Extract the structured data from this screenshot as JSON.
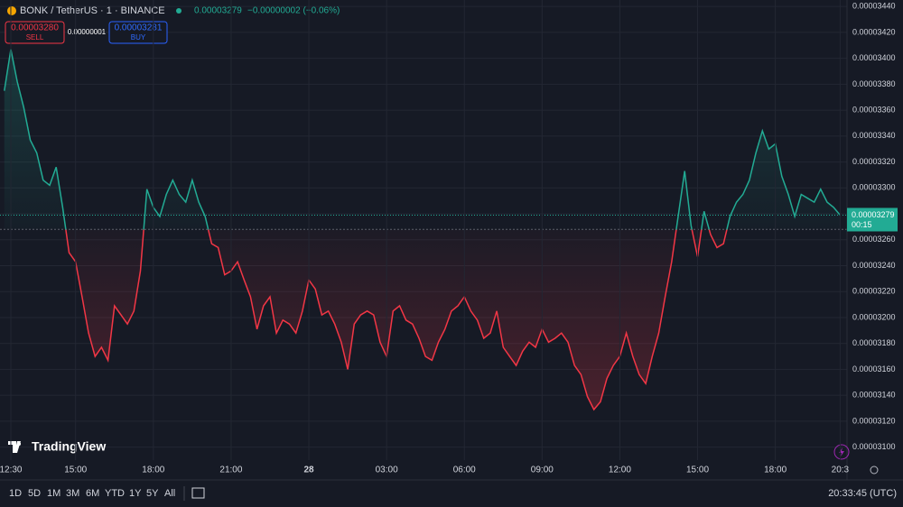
{
  "chart_data": {
    "type": "baseline",
    "categories": [
      null,
      "12:30",
      null,
      null,
      null,
      null,
      null,
      null,
      null,
      null,
      null,
      "15:00",
      null,
      null,
      null,
      null,
      null,
      null,
      null,
      null,
      null,
      null,
      null,
      "18:00",
      null,
      null,
      null,
      null,
      null,
      null,
      null,
      null,
      null,
      null,
      null,
      "21:00",
      null,
      null,
      null,
      null,
      null,
      null,
      null,
      null,
      null,
      null,
      null,
      "28",
      null,
      null,
      null,
      null,
      null,
      null,
      null,
      null,
      null,
      null,
      null,
      "03:00",
      null,
      null,
      null,
      null,
      null,
      null,
      null,
      null,
      null,
      null,
      null,
      "06:00",
      null,
      null,
      null,
      null,
      null,
      null,
      null,
      null,
      null,
      null,
      null,
      "09:00",
      null,
      null,
      null,
      null,
      null,
      null,
      null,
      null,
      null,
      null,
      null,
      "12:00",
      null,
      null,
      null,
      null,
      null,
      null,
      null,
      null,
      null,
      null,
      null,
      "15:00",
      null,
      null,
      null,
      null,
      null,
      null,
      null,
      null,
      null,
      null,
      null,
      "18:00",
      null,
      null,
      null,
      null,
      null,
      null,
      null,
      null,
      null,
      "20:3"
    ],
    "values": [
      3.375e-05,
      3.407e-05,
      3.382e-05,
      3.362e-05,
      3.337e-05,
      3.327e-05,
      3.306e-05,
      3.302e-05,
      3.316e-05,
      3.285e-05,
      3.25e-05,
      3.243e-05,
      3.216e-05,
      3.188e-05,
      3.17e-05,
      3.177e-05,
      3.167e-05,
      3.209e-05,
      3.202e-05,
      3.195e-05,
      3.205e-05,
      3.236e-05,
      3.299e-05,
      3.285e-05,
      3.278e-05,
      3.295e-05,
      3.306e-05,
      3.295e-05,
      3.289e-05,
      3.306e-05,
      3.289e-05,
      3.278e-05,
      3.257e-05,
      3.254e-05,
      3.233e-05,
      3.236e-05,
      3.243e-05,
      3.229e-05,
      3.216e-05,
      3.191e-05,
      3.209e-05,
      3.216e-05,
      3.188e-05,
      3.198e-05,
      3.195e-05,
      3.188e-05,
      3.205e-05,
      3.229e-05,
      3.222e-05,
      3.202e-05,
      3.205e-05,
      3.195e-05,
      3.181e-05,
      3.16e-05,
      3.195e-05,
      3.202e-05,
      3.205e-05,
      3.202e-05,
      3.181e-05,
      3.17e-05,
      3.205e-05,
      3.209e-05,
      3.198e-05,
      3.195e-05,
      3.184e-05,
      3.17e-05,
      3.167e-05,
      3.181e-05,
      3.191e-05,
      3.205e-05,
      3.209e-05,
      3.216e-05,
      3.205e-05,
      3.198e-05,
      3.184e-05,
      3.188e-05,
      3.205e-05,
      3.177e-05,
      3.17e-05,
      3.163e-05,
      3.174e-05,
      3.181e-05,
      3.177e-05,
      3.191e-05,
      3.181e-05,
      3.184e-05,
      3.188e-05,
      3.181e-05,
      3.163e-05,
      3.156e-05,
      3.139e-05,
      3.129e-05,
      3.135e-05,
      3.153e-05,
      3.163e-05,
      3.17e-05,
      3.188e-05,
      3.17e-05,
      3.156e-05,
      3.149e-05,
      3.17e-05,
      3.188e-05,
      3.216e-05,
      3.243e-05,
      3.278e-05,
      3.313e-05,
      3.271e-05,
      3.247e-05,
      3.282e-05,
      3.264e-05,
      3.254e-05,
      3.257e-05,
      3.278e-05,
      3.289e-05,
      3.295e-05,
      3.306e-05,
      3.327e-05,
      3.344e-05,
      3.33e-05,
      3.334e-05,
      3.309e-05,
      3.295e-05,
      3.278e-05,
      3.295e-05,
      3.292e-05,
      3.289e-05,
      3.299e-05,
      3.289e-05,
      3.285e-05,
      3.279e-05
    ],
    "baseline": 3.268e-05,
    "color_up": "#22ab94",
    "color_down": "#f23645",
    "ylim": [
      3.09e-05,
      3.445e-05
    ],
    "yticks": [
      {
        "value": 3.1e-05,
        "label": "0.00003100"
      },
      {
        "value": 3.12e-05,
        "label": "0.00003120"
      },
      {
        "value": 3.14e-05,
        "label": "0.00003140"
      },
      {
        "value": 3.16e-05,
        "label": "0.00003160"
      },
      {
        "value": 3.18e-05,
        "label": "0.00003180"
      },
      {
        "value": 3.2e-05,
        "label": "0.00003200"
      },
      {
        "value": 3.22e-05,
        "label": "0.00003220"
      },
      {
        "value": 3.24e-05,
        "label": "0.00003240"
      },
      {
        "value": 3.26e-05,
        "label": "0.00003260"
      },
      {
        "value": 3.28e-05,
        "label": "0.00003280"
      },
      {
        "value": 3.3e-05,
        "label": "0.00003300"
      },
      {
        "value": 3.32e-05,
        "label": "0.00003320"
      },
      {
        "value": 3.34e-05,
        "label": "0.00003340"
      },
      {
        "value": 3.36e-05,
        "label": "0.00003360"
      },
      {
        "value": 3.38e-05,
        "label": "0.00003380"
      },
      {
        "value": 3.4e-05,
        "label": "0.00003400"
      },
      {
        "value": 3.42e-05,
        "label": "0.00003420"
      },
      {
        "value": 3.44e-05,
        "label": "0.00003440"
      }
    ],
    "grid": true
  },
  "header": {
    "symbol": "BONK / TetherUS · 1 · BINANCE",
    "last": "0.00003279",
    "change": "−0.00000002 (−0.06%)"
  },
  "order": {
    "sell_price": "0.00003280",
    "sell": "SELL",
    "spread": "0.00000001",
    "buy_price": "0.00003281",
    "buy": "BUY"
  },
  "price_tag": {
    "price": "0.00003279",
    "countdown": "00:15"
  },
  "logo": "TradingView",
  "toolbar": {
    "ranges": [
      "1D",
      "5D",
      "1M",
      "3M",
      "6M",
      "YTD",
      "1Y",
      "5Y",
      "All"
    ],
    "clock": "20:33:45 (UTC)"
  }
}
